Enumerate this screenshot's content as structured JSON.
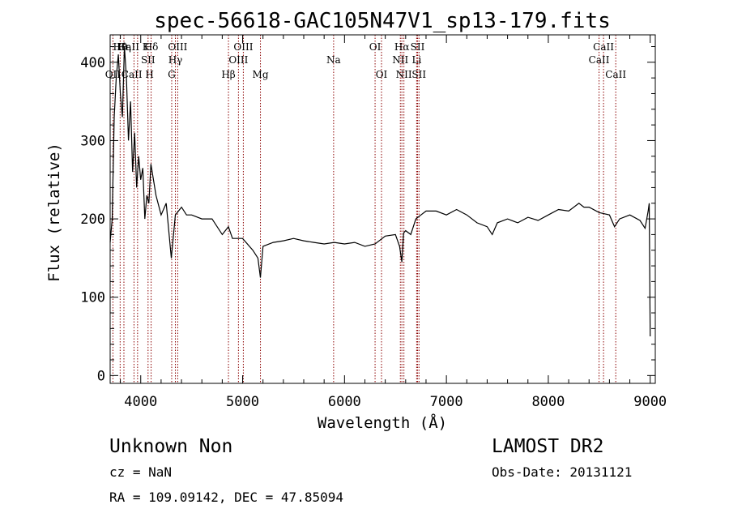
{
  "chart_data": {
    "type": "line",
    "title": "spec-56618-GAC105N47V1_sp13-179.fits",
    "xlabel": "Wavelength (Å)",
    "ylabel": "Flux (relative)",
    "xlim": [
      3700,
      9050
    ],
    "ylim": [
      -10,
      435
    ],
    "xticks": [
      4000,
      5000,
      6000,
      7000,
      8000,
      9000
    ],
    "yticks": [
      0,
      100,
      200,
      300,
      400
    ],
    "line_color": "#000000",
    "marker_color": "#8b0000",
    "series": [
      {
        "x": [
          3700,
          3720,
          3740,
          3760,
          3780,
          3800,
          3820,
          3840,
          3860,
          3880,
          3900,
          3920,
          3940,
          3960,
          3980,
          4000,
          4020,
          4040,
          4060,
          4080,
          4100,
          4150,
          4200,
          4250,
          4300,
          4340,
          4400,
          4450,
          4500,
          4600,
          4700,
          4800,
          4861,
          4900,
          5000,
          5100,
          5150,
          5175,
          5200,
          5300,
          5400,
          5500,
          5600,
          5700,
          5800,
          5900,
          6000,
          6100,
          6200,
          6300,
          6400,
          6500,
          6540,
          6563,
          6580,
          6600,
          6650,
          6700,
          6750,
          6800,
          6900,
          7000,
          7100,
          7200,
          7300,
          7400,
          7450,
          7500,
          7600,
          7700,
          7800,
          7900,
          8000,
          8100,
          8200,
          8300,
          8350,
          8400,
          8500,
          8600,
          8650,
          8700,
          8800,
          8900,
          8950,
          8980,
          8990,
          9000
        ],
        "y": [
          170,
          200,
          330,
          380,
          410,
          360,
          330,
          420,
          380,
          300,
          350,
          260,
          310,
          240,
          280,
          250,
          265,
          200,
          230,
          220,
          270,
          230,
          205,
          220,
          150,
          205,
          215,
          205,
          205,
          200,
          200,
          180,
          190,
          175,
          175,
          160,
          150,
          125,
          165,
          170,
          172,
          175,
          172,
          170,
          168,
          170,
          168,
          170,
          165,
          168,
          178,
          180,
          165,
          145,
          182,
          185,
          180,
          200,
          205,
          210,
          210,
          205,
          212,
          205,
          195,
          190,
          180,
          195,
          200,
          195,
          202,
          198,
          205,
          212,
          210,
          220,
          215,
          215,
          208,
          205,
          190,
          200,
          205,
          198,
          188,
          210,
          220,
          50
        ]
      }
    ],
    "lines": [
      {
        "label": "OII",
        "wl": 3727,
        "row": 3
      },
      {
        "label": "Hθ",
        "wl": 3798,
        "row": 1
      },
      {
        "label": "Hη",
        "wl": 3835,
        "row": 1
      },
      {
        "label": "CaII K",
        "wl": 3934,
        "row": 1
      },
      {
        "label": "CaII H",
        "wl": 3969,
        "row": 3
      },
      {
        "label": "SII",
        "wl": 4072,
        "row": 2
      },
      {
        "label": "Hδ",
        "wl": 4102,
        "row": 1
      },
      {
        "label": "G",
        "wl": 4304,
        "row": 3
      },
      {
        "label": "Hγ",
        "wl": 4340,
        "row": 2
      },
      {
        "label": "OIII",
        "wl": 4363,
        "row": 1
      },
      {
        "label": "Hβ",
        "wl": 4861,
        "row": 3
      },
      {
        "label": "OIII",
        "wl": 4959,
        "row": 2
      },
      {
        "label": "OIII",
        "wl": 5007,
        "row": 1
      },
      {
        "label": "Mg",
        "wl": 5175,
        "row": 3
      },
      {
        "label": "Na",
        "wl": 5893,
        "row": 2
      },
      {
        "label": "OI",
        "wl": 6300,
        "row": 1
      },
      {
        "label": "OI",
        "wl": 6363,
        "row": 3
      },
      {
        "label": "NII",
        "wl": 6548,
        "row": 2
      },
      {
        "label": "Hα",
        "wl": 6563,
        "row": 1
      },
      {
        "label": "NII",
        "wl": 6583,
        "row": 3
      },
      {
        "label": "Li",
        "wl": 6708,
        "row": 2
      },
      {
        "label": "SII",
        "wl": 6717,
        "row": 1
      },
      {
        "label": "SII",
        "wl": 6731,
        "row": 3
      },
      {
        "label": "CaII",
        "wl": 8498,
        "row": 2
      },
      {
        "label": "CaII",
        "wl": 8542,
        "row": 1
      },
      {
        "label": "CaII",
        "wl": 8662,
        "row": 3
      }
    ]
  },
  "info": {
    "class_line": "Unknown   Non",
    "survey": "LAMOST DR2",
    "cz": "cz = NaN",
    "obs_date": "Obs-Date: 20131121",
    "coords": "RA = 109.09142, DEC =  47.85094"
  }
}
